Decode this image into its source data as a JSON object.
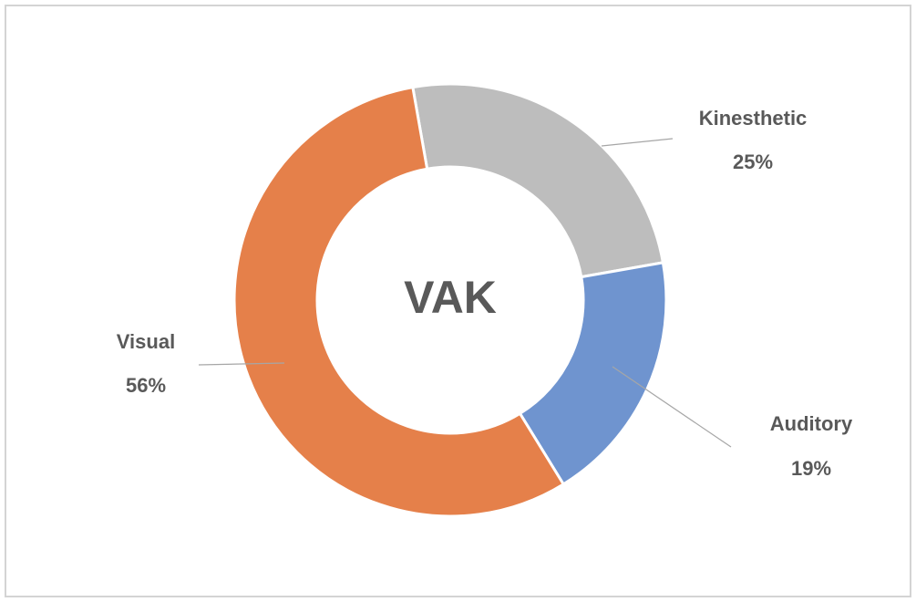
{
  "chart_data": {
    "type": "donut",
    "center_text": "VAK",
    "categories": [
      "Kinesthetic",
      "Auditory",
      "Visual"
    ],
    "values": [
      25,
      19,
      56
    ],
    "value_labels": [
      "25%",
      "19%",
      "56%"
    ],
    "colors": [
      "#bdbdbd",
      "#6f94cf",
      "#e5804a"
    ]
  }
}
